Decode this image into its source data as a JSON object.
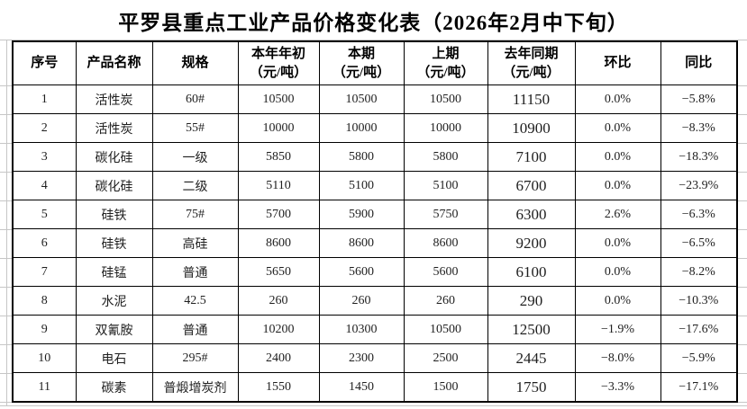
{
  "page": {
    "title": "平罗县重点工业产品价格变化表（2026年2月中下旬）"
  },
  "table": {
    "headers": [
      {
        "label": "序号",
        "unit": ""
      },
      {
        "label": "产品名称",
        "unit": ""
      },
      {
        "label": "规格",
        "unit": ""
      },
      {
        "label": "本年年初",
        "unit": "（元/吨）"
      },
      {
        "label": "本期",
        "unit": "（元/吨）"
      },
      {
        "label": "上期",
        "unit": "（元/吨）"
      },
      {
        "label": "去年同期",
        "unit": "（元/吨）"
      },
      {
        "label": "环比",
        "unit": ""
      },
      {
        "label": "同比",
        "unit": ""
      }
    ],
    "rows": [
      [
        "1",
        "活性炭",
        "60#",
        "10500",
        "10500",
        "10500",
        "11150",
        "0.0%",
        "−5.8%"
      ],
      [
        "2",
        "活性炭",
        "55#",
        "10000",
        "10000",
        "10000",
        "10900",
        "0.0%",
        "−8.3%"
      ],
      [
        "3",
        "碳化硅",
        "一级",
        "5850",
        "5800",
        "5800",
        "7100",
        "0.0%",
        "−18.3%"
      ],
      [
        "4",
        "碳化硅",
        "二级",
        "5110",
        "5100",
        "5100",
        "6700",
        "0.0%",
        "−23.9%"
      ],
      [
        "5",
        "硅铁",
        "75#",
        "5700",
        "5900",
        "5750",
        "6300",
        "2.6%",
        "−6.3%"
      ],
      [
        "6",
        "硅铁",
        "高硅",
        "8600",
        "8600",
        "8600",
        "9200",
        "0.0%",
        "−6.5%"
      ],
      [
        "7",
        "硅锰",
        "普通",
        "5650",
        "5600",
        "5600",
        "6100",
        "0.0%",
        "−8.2%"
      ],
      [
        "8",
        "水泥",
        "42.5",
        "260",
        "260",
        "260",
        "290",
        "0.0%",
        "−10.3%"
      ],
      [
        "9",
        "双氰胺",
        "普通",
        "10200",
        "10300",
        "10500",
        "12500",
        "−1.9%",
        "−17.6%"
      ],
      [
        "10",
        "电石",
        "295#",
        "2400",
        "2300",
        "2500",
        "2445",
        "−8.0%",
        "−5.9%"
      ],
      [
        "11",
        "碳素",
        "普煅增炭剂",
        "1550",
        "1450",
        "1500",
        "1750",
        "−3.3%",
        "−17.1%"
      ]
    ],
    "column_names": [
      "serial",
      "product-name",
      "spec",
      "year-start-price",
      "current-price",
      "previous-price",
      "last-year-price",
      "mom-change",
      "yoy-change"
    ]
  }
}
